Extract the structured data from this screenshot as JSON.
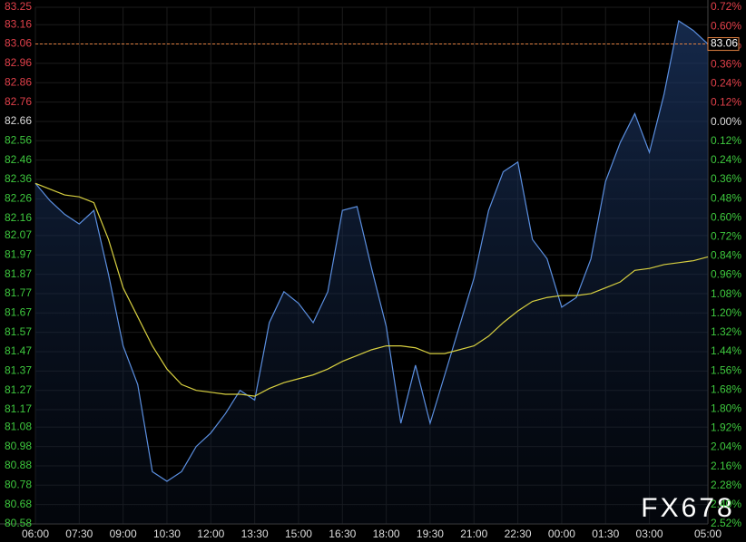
{
  "chart_data": {
    "type": "line",
    "x": [
      0,
      0.5,
      1,
      1.5,
      2,
      2.5,
      3,
      3.5,
      4,
      4.5,
      5,
      5.5,
      6,
      6.5,
      7,
      7.5,
      8,
      8.5,
      9,
      9.5,
      10,
      10.5,
      11,
      11.5,
      12,
      12.5,
      13,
      13.5,
      14,
      14.5,
      15,
      15.5,
      16,
      16.5,
      17,
      17.5,
      18,
      18.5,
      19,
      19.5,
      20,
      20.5,
      21,
      21.5,
      22,
      22.5,
      23
    ],
    "series": [
      {
        "color": "#5b8fe0",
        "values": [
          82.34,
          82.25,
          82.18,
          82.13,
          82.2,
          81.87,
          81.5,
          81.3,
          80.85,
          80.8,
          80.85,
          80.98,
          81.05,
          81.15,
          81.27,
          81.22,
          81.62,
          81.78,
          81.72,
          81.62,
          81.78,
          82.2,
          82.22,
          81.9,
          81.6,
          81.1,
          81.4,
          81.1,
          81.35,
          81.6,
          81.85,
          82.2,
          82.4,
          82.45,
          82.05,
          81.95,
          81.7,
          81.75,
          81.95,
          82.35,
          82.55,
          82.7,
          82.5,
          82.8,
          83.18,
          83.13,
          83.06
        ]
      },
      {
        "color": "#d8d040",
        "values": [
          82.34,
          82.31,
          82.28,
          82.27,
          82.24,
          82.05,
          81.8,
          81.65,
          81.5,
          81.38,
          81.3,
          81.27,
          81.26,
          81.25,
          81.25,
          81.24,
          81.28,
          81.31,
          81.33,
          81.35,
          81.38,
          81.42,
          81.45,
          81.48,
          81.5,
          81.5,
          81.49,
          81.46,
          81.46,
          81.48,
          81.5,
          81.55,
          81.62,
          81.68,
          81.73,
          81.75,
          81.76,
          81.76,
          81.77,
          81.8,
          81.83,
          81.89,
          81.9,
          81.92,
          81.93,
          81.94,
          81.96
        ]
      }
    ],
    "xlim": [
      0,
      23
    ],
    "xticks": [
      {
        "value": 0,
        "label": "06:00"
      },
      {
        "value": 1.5,
        "label": "07:30"
      },
      {
        "value": 3,
        "label": "09:00"
      },
      {
        "value": 4.5,
        "label": "10:30"
      },
      {
        "value": 6,
        "label": "12:00"
      },
      {
        "value": 7.5,
        "label": "13:30"
      },
      {
        "value": 9,
        "label": "15:00"
      },
      {
        "value": 10.5,
        "label": "16:30"
      },
      {
        "value": 12,
        "label": "18:00"
      },
      {
        "value": 13.5,
        "label": "19:30"
      },
      {
        "value": 15,
        "label": "21:00"
      },
      {
        "value": 16.5,
        "label": "22:30"
      },
      {
        "value": 18,
        "label": "00:00"
      },
      {
        "value": 19.5,
        "label": "01:30"
      },
      {
        "value": 21,
        "label": "03:00"
      },
      {
        "value": 23,
        "label": "05:00"
      }
    ],
    "ylim": [
      80.58,
      83.25
    ],
    "yticks": [
      83.25,
      83.16,
      83.06,
      82.96,
      82.86,
      82.76,
      82.66,
      82.56,
      82.46,
      82.36,
      82.26,
      82.16,
      82.07,
      81.97,
      81.87,
      81.77,
      81.67,
      81.57,
      81.47,
      81.37,
      81.27,
      81.17,
      81.08,
      80.98,
      80.88,
      80.78,
      80.68,
      80.58
    ],
    "y2lim": [
      -2.52,
      0.72
    ],
    "y2ticks": [
      {
        "value": 0.72,
        "label": "0.72%"
      },
      {
        "value": 0.6,
        "label": "0.60%"
      },
      {
        "value": 0.48,
        "label": "0.48%"
      },
      {
        "value": 0.36,
        "label": "0.36%"
      },
      {
        "value": 0.24,
        "label": "0.24%"
      },
      {
        "value": 0.12,
        "label": "0.12%"
      },
      {
        "value": 0,
        "label": "0.00%"
      },
      {
        "value": -0.12,
        "label": "0.12%"
      },
      {
        "value": -0.24,
        "label": "0.24%"
      },
      {
        "value": -0.36,
        "label": "0.36%"
      },
      {
        "value": -0.48,
        "label": "0.48%"
      },
      {
        "value": -0.6,
        "label": "0.60%"
      },
      {
        "value": -0.72,
        "label": "0.72%"
      },
      {
        "value": -0.84,
        "label": "0.84%"
      },
      {
        "value": -0.96,
        "label": "0.96%"
      },
      {
        "value": -1.08,
        "label": "1.08%"
      },
      {
        "value": -1.2,
        "label": "1.20%"
      },
      {
        "value": -1.32,
        "label": "1.32%"
      },
      {
        "value": -1.44,
        "label": "1.44%"
      },
      {
        "value": -1.56,
        "label": "1.56%"
      },
      {
        "value": -1.68,
        "label": "1.68%"
      },
      {
        "value": -1.8,
        "label": "1.80%"
      },
      {
        "value": -1.92,
        "label": "1.92%"
      },
      {
        "value": -2.04,
        "label": "2.04%"
      },
      {
        "value": -2.16,
        "label": "2.16%"
      },
      {
        "value": -2.28,
        "label": "2.28%"
      },
      {
        "value": -2.4,
        "label": "2.40%"
      },
      {
        "value": -2.52,
        "label": "2.52%"
      }
    ],
    "current": 83.06,
    "base": 82.66,
    "up_color": "#e0404a",
    "down_color": "#3ec83e",
    "base_color": "#dddddd",
    "grid": true,
    "watermark": "FX678"
  }
}
